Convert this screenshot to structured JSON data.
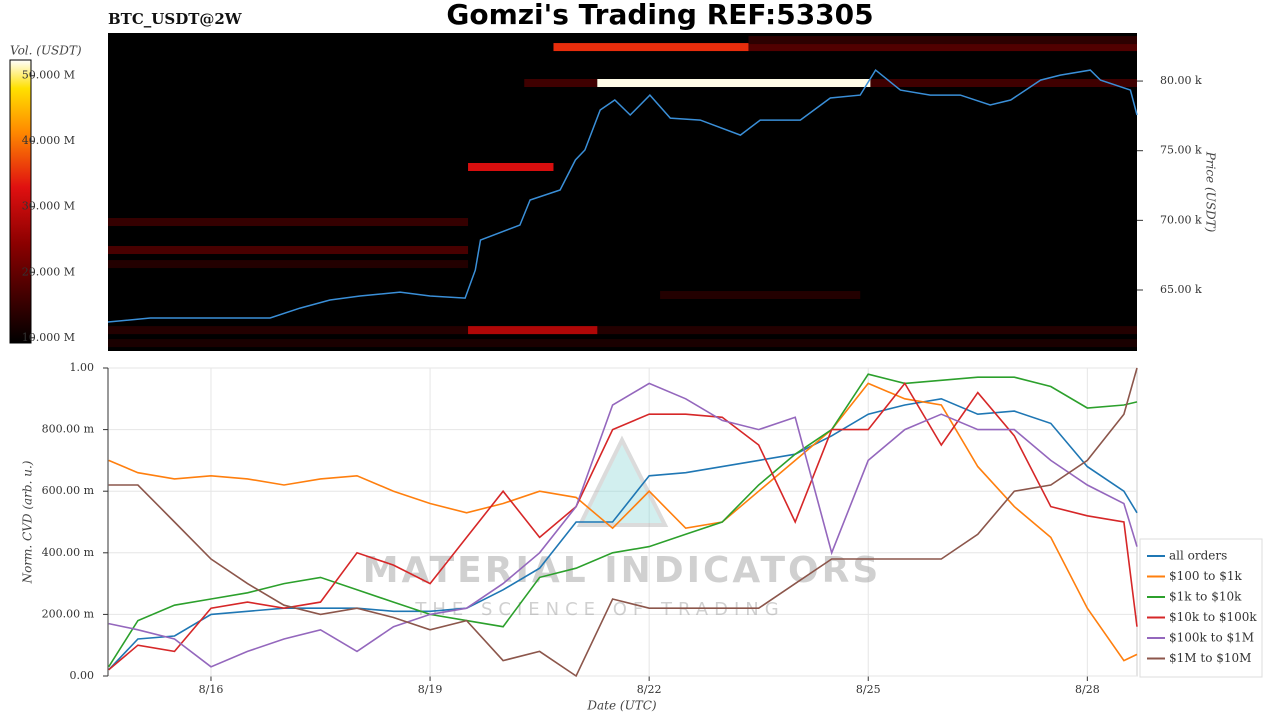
{
  "chart_data": [
    {
      "type": "heatmap",
      "title": "Gomzi's Trading REF:53305",
      "subtitle": "BTC_USDT@2W",
      "ylabel": "Price (USDT)",
      "color": "#3a8fd8",
      "xlim": [
        14.59,
        28.68
      ],
      "ylim": [
        60620,
        83450
      ],
      "yticks": [
        {
          "value": 65000,
          "label": "65.00 k"
        },
        {
          "value": 70000,
          "label": "70.00 k"
        },
        {
          "value": 75000,
          "label": "75.00 k"
        },
        {
          "value": 80000,
          "label": "80.00 k"
        }
      ],
      "x": [
        14.59,
        15.17,
        16.0,
        16.81,
        17.22,
        17.63,
        18.04,
        18.59,
        19.0,
        19.48,
        19.62,
        19.69,
        20.23,
        20.37,
        20.78,
        20.99,
        21.12,
        21.33,
        21.53,
        21.74,
        22.01,
        22.29,
        22.7,
        23.25,
        23.52,
        24.07,
        24.48,
        24.89,
        25.1,
        25.44,
        25.85,
        26.26,
        26.67,
        26.95,
        27.36,
        27.63,
        28.04,
        28.18,
        28.59,
        28.68
      ],
      "values": [
        62700,
        62990,
        62990,
        62990,
        63700,
        64280,
        64570,
        64850,
        64570,
        64420,
        66430,
        68590,
        69660,
        71460,
        72180,
        74330,
        75050,
        77920,
        78640,
        77560,
        78990,
        77340,
        77200,
        76120,
        77200,
        77200,
        78780,
        78990,
        80790,
        79350,
        78990,
        78990,
        78280,
        78640,
        80070,
        80430,
        80790,
        80070,
        79350,
        77560
      ],
      "heatmap": [
        {
          "price": 62120,
          "start": 14.59,
          "end": 28.68,
          "volume": 13000000
        },
        {
          "price": 61190,
          "start": 14.59,
          "end": 28.68,
          "volume": 12000000
        },
        {
          "price": 62120,
          "start": 19.52,
          "end": 21.29,
          "volume": 28000000
        },
        {
          "price": 82440,
          "start": 20.69,
          "end": 23.36,
          "volume": 35000000
        },
        {
          "price": 82440,
          "start": 23.36,
          "end": 28.68,
          "volume": 18000000
        },
        {
          "price": 82940,
          "start": 23.36,
          "end": 28.68,
          "volume": 14000000
        },
        {
          "price": 79860,
          "start": 20.29,
          "end": 21.29,
          "volume": 16000000
        },
        {
          "price": 79860,
          "start": 21.29,
          "end": 25.03,
          "volume": 52000000
        },
        {
          "price": 79860,
          "start": 25.03,
          "end": 28.68,
          "volume": 16000000
        },
        {
          "price": 73830,
          "start": 19.52,
          "end": 20.69,
          "volume": 32000000
        },
        {
          "price": 69880,
          "start": 14.59,
          "end": 19.52,
          "volume": 15000000
        },
        {
          "price": 67870,
          "start": 14.59,
          "end": 19.52,
          "volume": 17000000
        },
        {
          "price": 66860,
          "start": 14.59,
          "end": 19.52,
          "volume": 13000000
        },
        {
          "price": 64640,
          "start": 22.15,
          "end": 24.89,
          "volume": 13000000
        }
      ],
      "colorbar": {
        "label": "Vol. (USDT)",
        "lim": [
          9200000,
          52400000
        ],
        "ticks": [
          {
            "value": 10000000,
            "label": "10.000 M"
          },
          {
            "value": 20000000,
            "label": "20.000 M"
          },
          {
            "value": 30000000,
            "label": "30.000 M"
          },
          {
            "value": 40000000,
            "label": "40.000 M"
          },
          {
            "value": 50000000,
            "label": "50.000 M"
          }
        ]
      }
    },
    {
      "type": "line",
      "xlabel": "Date (UTC)",
      "ylabel": "Norm. CVD (arb. u.)",
      "grid": true,
      "legend": "right",
      "watermark_title": "MATERIAL INDICATORS",
      "watermark_subtitle": "THE SCIENCE OF TRADING",
      "xlim": [
        14.59,
        28.68
      ],
      "ylim": [
        0,
        1
      ],
      "xticks": [
        {
          "value": 16,
          "label": "8/16"
        },
        {
          "value": 19,
          "label": "8/19"
        },
        {
          "value": 22,
          "label": "8/22"
        },
        {
          "value": 25,
          "label": "8/25"
        },
        {
          "value": 28,
          "label": "8/28"
        }
      ],
      "yticks": [
        {
          "value": 0,
          "label": "0.00"
        },
        {
          "value": 0.2,
          "label": "200.00 m"
        },
        {
          "value": 0.4,
          "label": "400.00 m"
        },
        {
          "value": 0.6,
          "label": "600.00 m"
        },
        {
          "value": 0.8,
          "label": "800.00 m"
        },
        {
          "value": 1,
          "label": "1.00"
        }
      ],
      "x": [
        14.6,
        15.0,
        15.5,
        16.0,
        16.5,
        17.0,
        17.5,
        18.0,
        18.5,
        19.0,
        19.5,
        20.0,
        20.5,
        21.0,
        21.5,
        22.0,
        22.5,
        23.0,
        23.5,
        24.0,
        24.5,
        25.0,
        25.5,
        26.0,
        26.5,
        27.0,
        27.5,
        28.0,
        28.5,
        28.68
      ],
      "series": [
        {
          "name": "all orders",
          "color": "#1f77b4",
          "values": [
            0.02,
            0.12,
            0.13,
            0.2,
            0.21,
            0.22,
            0.22,
            0.22,
            0.21,
            0.21,
            0.22,
            0.28,
            0.35,
            0.5,
            0.5,
            0.65,
            0.66,
            0.68,
            0.7,
            0.72,
            0.78,
            0.85,
            0.88,
            0.9,
            0.85,
            0.86,
            0.82,
            0.68,
            0.6,
            0.53
          ]
        },
        {
          "name": "$100 to $1k",
          "color": "#ff7f0e",
          "values": [
            0.7,
            0.66,
            0.64,
            0.65,
            0.64,
            0.62,
            0.64,
            0.65,
            0.6,
            0.56,
            0.53,
            0.56,
            0.6,
            0.58,
            0.48,
            0.6,
            0.48,
            0.5,
            0.6,
            0.7,
            0.8,
            0.95,
            0.9,
            0.88,
            0.68,
            0.55,
            0.45,
            0.22,
            0.05,
            0.07
          ]
        },
        {
          "name": "$1k to $10k",
          "color": "#2ca02c",
          "values": [
            0.03,
            0.18,
            0.23,
            0.25,
            0.27,
            0.3,
            0.32,
            0.28,
            0.24,
            0.2,
            0.18,
            0.16,
            0.32,
            0.35,
            0.4,
            0.42,
            0.46,
            0.5,
            0.62,
            0.72,
            0.8,
            0.98,
            0.95,
            0.96,
            0.97,
            0.97,
            0.94,
            0.87,
            0.88,
            0.89
          ]
        },
        {
          "name": "$10k to $100k",
          "color": "#d62728",
          "values": [
            0.02,
            0.1,
            0.08,
            0.22,
            0.24,
            0.22,
            0.24,
            0.4,
            0.36,
            0.3,
            0.45,
            0.6,
            0.45,
            0.55,
            0.8,
            0.85,
            0.85,
            0.84,
            0.75,
            0.5,
            0.8,
            0.8,
            0.95,
            0.75,
            0.92,
            0.78,
            0.55,
            0.52,
            0.5,
            0.16
          ]
        },
        {
          "name": "$100k to $1M",
          "color": "#9467bd",
          "values": [
            0.17,
            0.15,
            0.12,
            0.03,
            0.08,
            0.12,
            0.15,
            0.08,
            0.16,
            0.2,
            0.22,
            0.3,
            0.4,
            0.55,
            0.88,
            0.95,
            0.9,
            0.83,
            0.8,
            0.84,
            0.4,
            0.7,
            0.8,
            0.85,
            0.8,
            0.8,
            0.7,
            0.62,
            0.56,
            0.42
          ]
        },
        {
          "name": "$1M to $10M",
          "color": "#8c564b",
          "values": [
            0.62,
            0.62,
            0.5,
            0.38,
            0.3,
            0.23,
            0.2,
            0.22,
            0.19,
            0.15,
            0.18,
            0.05,
            0.08,
            0.0,
            0.25,
            0.22,
            0.22,
            0.22,
            0.22,
            0.3,
            0.38,
            0.38,
            0.38,
            0.38,
            0.46,
            0.6,
            0.62,
            0.7,
            0.85,
            1.0
          ]
        }
      ]
    }
  ]
}
